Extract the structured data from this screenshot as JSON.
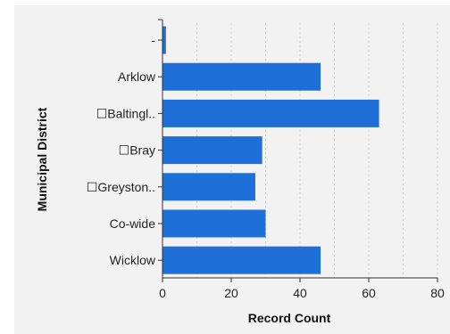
{
  "chart_data": {
    "type": "bar",
    "orientation": "horizontal",
    "xlabel": "Record Count",
    "ylabel": "Municipal District",
    "categories": [
      "-",
      "Arklow",
      "☐Baltingl..",
      "☐Bray",
      "☐Greyston..",
      "Co-wide",
      "Wicklow"
    ],
    "values": [
      1,
      46,
      63,
      29,
      27,
      30,
      46
    ],
    "xlim": [
      0,
      80
    ],
    "xticks": [
      "0",
      "20",
      "40",
      "60",
      "80"
    ],
    "grid": true,
    "legend": "none",
    "colors": {
      "bar": "#1f6fd8",
      "background": "#f2f2f2",
      "grid": "#cccccc",
      "axis": "#333333"
    }
  }
}
